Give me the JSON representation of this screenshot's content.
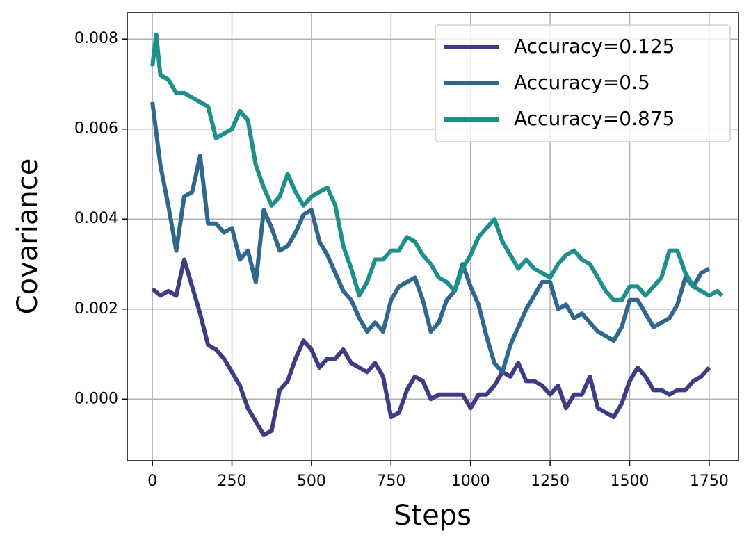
{
  "chart_data": {
    "type": "line",
    "xlabel": "Steps",
    "ylabel": "Covariance",
    "xlim": [
      -79,
      1842
    ],
    "ylim": [
      -0.00137,
      0.00859
    ],
    "xticks": [
      0,
      250,
      500,
      750,
      1000,
      1250,
      1500,
      1750
    ],
    "yticks": [
      {
        "value": 0,
        "label": "0.000"
      },
      {
        "value": 0.002,
        "label": "0.002"
      },
      {
        "value": 0.004,
        "label": "0.004"
      },
      {
        "value": 0.006,
        "label": "0.006"
      },
      {
        "value": 0.008,
        "label": "0.008"
      }
    ],
    "grid": true,
    "legend": "upper right",
    "series": [
      {
        "name": "Accuracy=0.125",
        "color": "#3e3c83",
        "x": [
          0,
          25,
          50,
          75,
          100,
          125,
          150,
          175,
          200,
          225,
          250,
          275,
          300,
          325,
          350,
          375,
          400,
          425,
          450,
          475,
          500,
          525,
          550,
          575,
          600,
          625,
          650,
          675,
          700,
          725,
          750,
          775,
          800,
          825,
          850,
          875,
          900,
          925,
          950,
          975,
          1000,
          1025,
          1050,
          1075,
          1100,
          1125,
          1150,
          1175,
          1200,
          1225,
          1250,
          1275,
          1300,
          1325,
          1350,
          1375,
          1400,
          1425,
          1450,
          1475,
          1500,
          1525,
          1550,
          1575,
          1600,
          1625,
          1650,
          1675,
          1700,
          1725,
          1750
        ],
        "values": [
          0.00245,
          0.0023,
          0.0024,
          0.0023,
          0.0031,
          0.0025,
          0.0019,
          0.0012,
          0.0011,
          0.0009,
          0.0006,
          0.0003,
          -0.0002,
          -0.0005,
          -0.0008,
          -0.0007,
          0.0002,
          0.0004,
          0.0009,
          0.0013,
          0.0011,
          0.0007,
          0.0009,
          0.0009,
          0.0011,
          0.0008,
          0.0007,
          0.0006,
          0.0008,
          0.0005,
          -0.0004,
          -0.0003,
          0.0002,
          0.0005,
          0.0004,
          0.0,
          0.0001,
          0.0001,
          0.0001,
          0.0001,
          -0.0002,
          0.0001,
          0.0001,
          0.0003,
          0.0006,
          0.0005,
          0.0008,
          0.0004,
          0.0004,
          0.0003,
          0.0001,
          0.0003,
          -0.0002,
          0.0001,
          0.0001,
          0.0005,
          -0.0002,
          -0.0003,
          -0.0004,
          -0.0001,
          0.0004,
          0.0007,
          0.0005,
          0.0002,
          0.0002,
          0.0001,
          0.0002,
          0.0002,
          0.0004,
          0.0005,
          0.0007
        ]
      },
      {
        "name": "Accuracy=0.5",
        "color": "#2f678e",
        "x": [
          0,
          25,
          50,
          75,
          100,
          125,
          150,
          175,
          200,
          225,
          250,
          275,
          300,
          325,
          350,
          375,
          400,
          425,
          450,
          475,
          500,
          525,
          550,
          575,
          600,
          625,
          650,
          675,
          700,
          725,
          750,
          775,
          800,
          825,
          850,
          875,
          900,
          925,
          950,
          975,
          1000,
          1025,
          1050,
          1075,
          1100,
          1125,
          1150,
          1175,
          1200,
          1225,
          1250,
          1275,
          1300,
          1325,
          1350,
          1375,
          1400,
          1425,
          1450,
          1475,
          1500,
          1525,
          1550,
          1575,
          1600,
          1625,
          1650,
          1675,
          1700,
          1725,
          1750
        ],
        "values": [
          0.0066,
          0.0052,
          0.0043,
          0.0033,
          0.0045,
          0.0046,
          0.0054,
          0.0039,
          0.0039,
          0.0037,
          0.0038,
          0.0031,
          0.0033,
          0.0026,
          0.0042,
          0.0038,
          0.0033,
          0.0034,
          0.0037,
          0.0041,
          0.0042,
          0.0035,
          0.0032,
          0.0028,
          0.0024,
          0.0022,
          0.0018,
          0.0015,
          0.0017,
          0.0015,
          0.0022,
          0.0025,
          0.0026,
          0.0027,
          0.0022,
          0.0015,
          0.0017,
          0.0022,
          0.0024,
          0.003,
          0.0025,
          0.0021,
          0.0014,
          0.0008,
          0.0006,
          0.0012,
          0.0016,
          0.002,
          0.0023,
          0.0026,
          0.0026,
          0.002,
          0.0021,
          0.0018,
          0.0019,
          0.0017,
          0.0015,
          0.0014,
          0.0013,
          0.0016,
          0.0022,
          0.0022,
          0.0019,
          0.0016,
          0.0017,
          0.0018,
          0.0021,
          0.0027,
          0.0025,
          0.0028,
          0.0029
        ]
      },
      {
        "name": "Accuracy=0.875",
        "color": "#1f8f89",
        "x": [
          0,
          12,
          25,
          50,
          75,
          100,
          125,
          150,
          175,
          200,
          225,
          250,
          275,
          300,
          325,
          350,
          375,
          400,
          425,
          450,
          475,
          500,
          525,
          550,
          575,
          600,
          625,
          650,
          675,
          700,
          725,
          750,
          775,
          800,
          825,
          850,
          875,
          900,
          925,
          950,
          975,
          1000,
          1025,
          1050,
          1075,
          1100,
          1125,
          1150,
          1175,
          1200,
          1225,
          1250,
          1275,
          1300,
          1325,
          1350,
          1375,
          1400,
          1425,
          1450,
          1475,
          1500,
          1525,
          1550,
          1575,
          1600,
          1625,
          1650,
          1675,
          1700,
          1725,
          1750,
          1775,
          1790
        ],
        "values": [
          0.0074,
          0.0081,
          0.0072,
          0.0071,
          0.0068,
          0.0068,
          0.0067,
          0.0066,
          0.0065,
          0.0058,
          0.0059,
          0.006,
          0.0064,
          0.0062,
          0.0052,
          0.0047,
          0.0043,
          0.0045,
          0.005,
          0.0046,
          0.0043,
          0.0045,
          0.0046,
          0.0047,
          0.0043,
          0.0034,
          0.0029,
          0.0023,
          0.0026,
          0.0031,
          0.0031,
          0.0033,
          0.0033,
          0.0036,
          0.0035,
          0.0032,
          0.003,
          0.0027,
          0.0026,
          0.0024,
          0.0029,
          0.0032,
          0.0036,
          0.0038,
          0.004,
          0.0035,
          0.0032,
          0.0029,
          0.0031,
          0.0029,
          0.0028,
          0.0027,
          0.003,
          0.0032,
          0.0033,
          0.0031,
          0.003,
          0.0027,
          0.0024,
          0.0022,
          0.0022,
          0.0025,
          0.0025,
          0.0023,
          0.0025,
          0.0027,
          0.0033,
          0.0033,
          0.0028,
          0.0025,
          0.0024,
          0.0023,
          0.0024,
          0.0023
        ]
      }
    ]
  }
}
